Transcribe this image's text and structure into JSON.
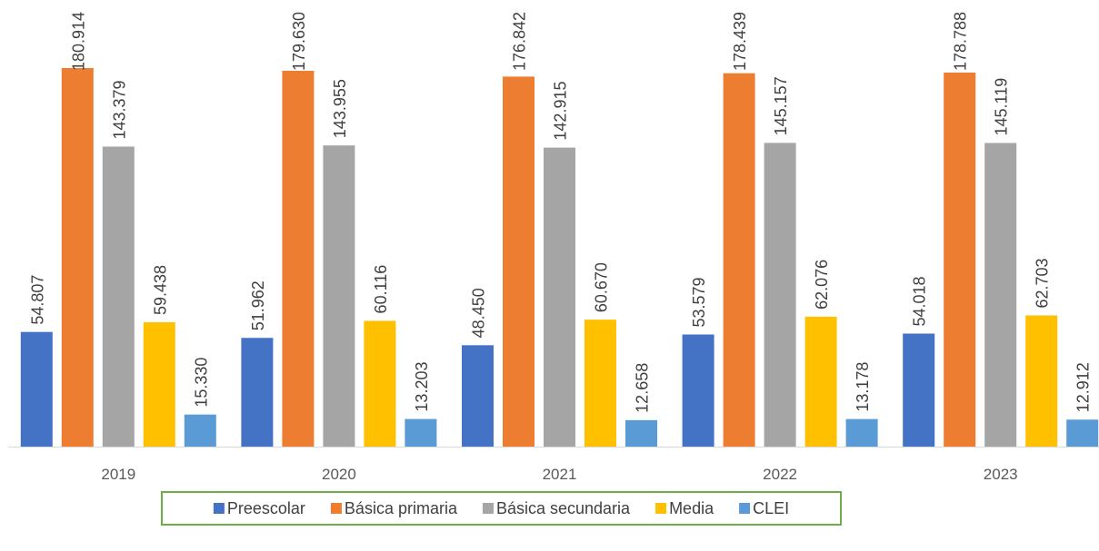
{
  "chart_data": {
    "type": "bar",
    "categories": [
      "2019",
      "2020",
      "2021",
      "2022",
      "2023"
    ],
    "series": [
      {
        "name": "Preescolar",
        "color": "#4472c4",
        "values": [
          54807,
          51962,
          48450,
          53579,
          54018
        ],
        "value_labels": [
          "54.807",
          "51.962",
          "48.450",
          "53.579",
          "54.018"
        ]
      },
      {
        "name": "Básica primaria",
        "color": "#ed7d31",
        "values": [
          180914,
          179630,
          176842,
          178439,
          178788
        ],
        "value_labels": [
          "180.914",
          "179.630",
          "176.842",
          "178.439",
          "178.788"
        ]
      },
      {
        "name": "Básica secundaria",
        "color": "#a5a5a5",
        "values": [
          143379,
          143955,
          142915,
          145157,
          145119
        ],
        "value_labels": [
          "143.379",
          "143.955",
          "142.915",
          "145.157",
          "145.119"
        ]
      },
      {
        "name": "Media",
        "color": "#ffc000",
        "values": [
          59438,
          60116,
          60670,
          62076,
          62703
        ],
        "value_labels": [
          "59.438",
          "60.116",
          "60.670",
          "62.076",
          "62.703"
        ]
      },
      {
        "name": "CLEI",
        "color": "#5b9bd5",
        "values": [
          15330,
          13203,
          12658,
          13178,
          12912
        ],
        "value_labels": [
          "15.330",
          "13.203",
          "12.658",
          "13.178",
          "12.912"
        ]
      }
    ],
    "legend": "bottom"
  }
}
